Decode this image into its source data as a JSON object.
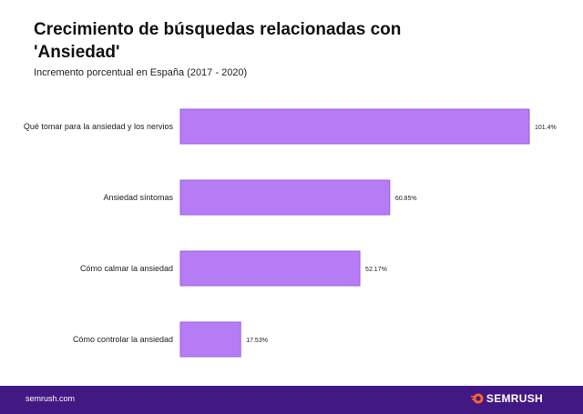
{
  "chart_data": {
    "type": "bar",
    "orientation": "horizontal",
    "title": "Crecimiento de búsquedas relacionadas con 'Ansiedad'",
    "subtitle": "Incremento porcentual en España (2017 - 2020)",
    "categories": [
      "Qué tomar para la ansiedad y los nervios",
      "Ansiedad síntomas",
      "Cómo calmar la ansiedad",
      "Cómo controlar la ansiedad"
    ],
    "values": [
      101.4,
      60.85,
      52.17,
      17.53
    ],
    "value_labels": [
      "101.4%",
      "60.85%",
      "52.17%",
      "17.53%"
    ],
    "xlim": [
      0,
      101.4
    ],
    "grid": false,
    "bar_color": "#b57cf5",
    "bar_border": "#9b5ee6"
  },
  "footer": {
    "site": "semrush.com",
    "brand": "SEMRUSH",
    "background": "#421983",
    "logo_color": "#ff642d"
  }
}
